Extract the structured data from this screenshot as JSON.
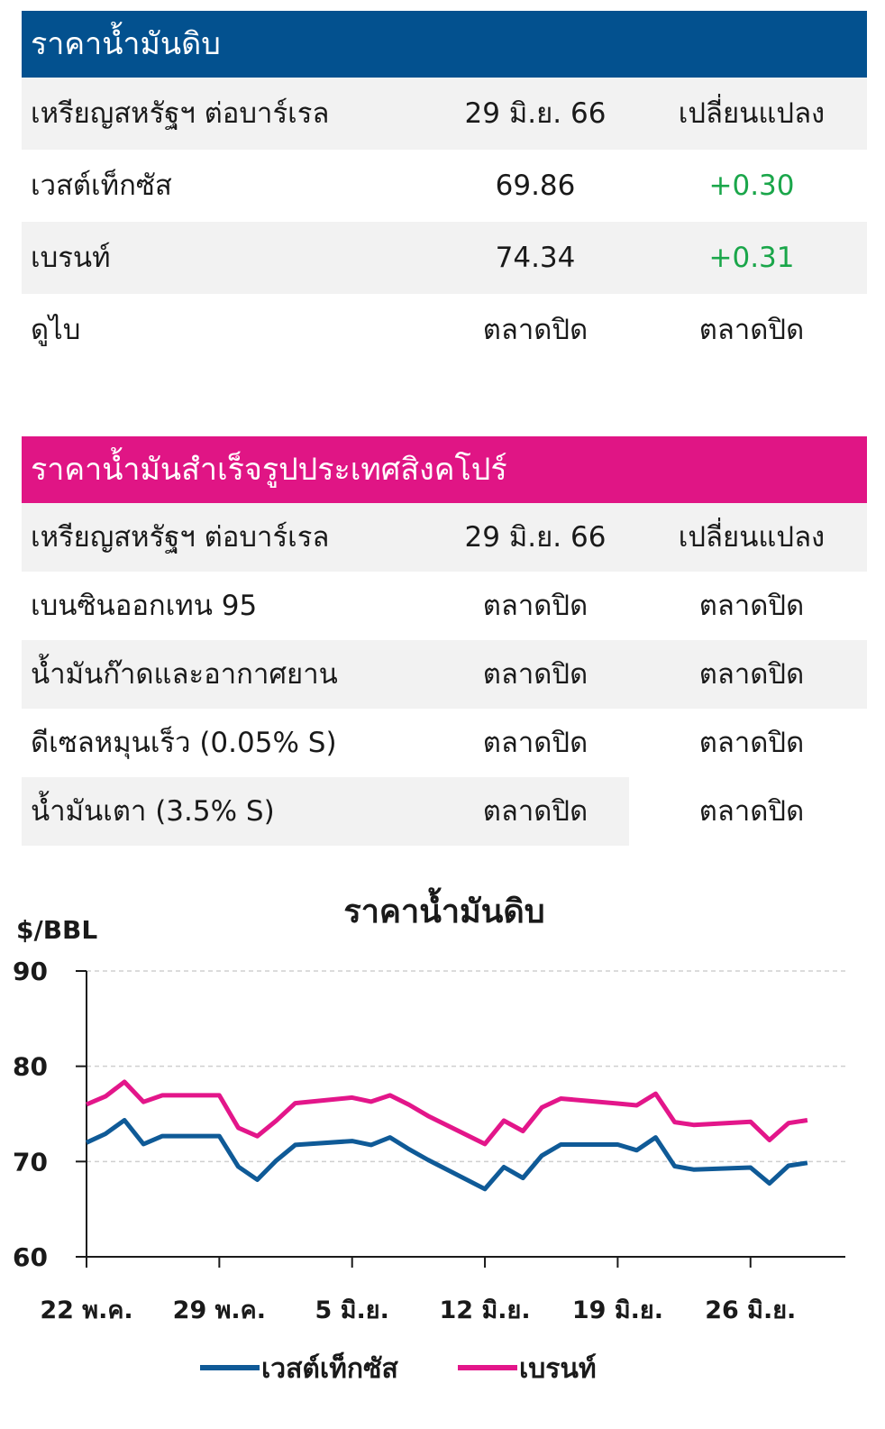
{
  "crude": {
    "title": "ราคาน้ำมันดิบ",
    "header": {
      "unit": "เหรียญสหรัฐฯ ต่อบาร์เรล",
      "date": "29 มิ.ย. 66",
      "change": "เปลี่ยนแปลง"
    },
    "rows": [
      {
        "name": "เวสต์เท็กซัส",
        "value": "69.86",
        "change": "+0.30"
      },
      {
        "name": "เบรนท์",
        "value": "74.34",
        "change": "+0.31"
      },
      {
        "name": "ดูไบ",
        "value": "ตลาดปิด",
        "change": "ตลาดปิด"
      }
    ]
  },
  "refined": {
    "title": "ราคาน้ำมันสำเร็จรูปประเทศสิงคโปร์",
    "header": {
      "unit": "เหรียญสหรัฐฯ ต่อบาร์เรล",
      "date": "29 มิ.ย. 66",
      "change": "เปลี่ยนแปลง"
    },
    "rows": [
      {
        "name": "เบนซินออกเทน 95",
        "value": "ตลาดปิด",
        "change": "ตลาดปิด"
      },
      {
        "name": "น้ำมันก๊าดและอากาศยาน",
        "value": "ตลาดปิด",
        "change": "ตลาดปิด"
      },
      {
        "name": "ดีเซลหมุนเร็ว (0.05% S)",
        "value": "ตลาดปิด",
        "change": "ตลาดปิด"
      },
      {
        "name": "น้ำมันเตา (3.5% S)",
        "value": "ตลาดปิด",
        "change": "ตลาดปิด"
      }
    ]
  },
  "colors": {
    "wti": "#0f5a97",
    "brent": "#e3168a",
    "up": "#1aa64a",
    "header_blue": "#03518f",
    "header_pink": "#e01585"
  },
  "chart_data": {
    "type": "line",
    "title": "ราคาน้ำมันดิบ",
    "ylabel": "$/BBL",
    "ylim": [
      60,
      90
    ],
    "yticks": [
      "90",
      "80",
      "70",
      "60"
    ],
    "grid": true,
    "legend_position": "bottom",
    "x_tick_labels": [
      "22 พ.ค.",
      "29 พ.ค.",
      "5 มิ.ย.",
      "12 มิ.ย.",
      "19 มิ.ย.",
      "26 มิ.ย."
    ],
    "x": [
      "2023-05-22",
      "2023-05-23",
      "2023-05-24",
      "2023-05-25",
      "2023-05-26",
      "2023-05-29",
      "2023-05-30",
      "2023-05-31",
      "2023-06-01",
      "2023-06-02",
      "2023-06-05",
      "2023-06-06",
      "2023-06-07",
      "2023-06-08",
      "2023-06-09",
      "2023-06-12",
      "2023-06-13",
      "2023-06-14",
      "2023-06-15",
      "2023-06-16",
      "2023-06-19",
      "2023-06-20",
      "2023-06-21",
      "2023-06-22",
      "2023-06-23",
      "2023-06-26",
      "2023-06-27",
      "2023-06-28",
      "2023-06-29"
    ],
    "series": [
      {
        "name": "เวสต์เท็กซัส",
        "values": [
          71.99,
          72.91,
          74.34,
          71.83,
          72.67,
          72.67,
          69.46,
          68.09,
          70.1,
          71.74,
          72.15,
          71.74,
          72.53,
          71.29,
          70.17,
          67.12,
          69.42,
          68.27,
          70.62,
          71.78,
          71.78,
          71.19,
          72.53,
          69.51,
          69.16,
          69.37,
          67.7,
          69.56,
          69.86
        ]
      },
      {
        "name": "เบรนท์",
        "values": [
          75.99,
          76.84,
          78.36,
          76.26,
          76.95,
          76.95,
          73.54,
          72.66,
          74.28,
          76.13,
          76.71,
          76.29,
          76.95,
          75.96,
          74.79,
          71.84,
          74.29,
          73.2,
          75.67,
          76.61,
          76.09,
          75.9,
          77.12,
          74.14,
          73.85,
          74.18,
          72.26,
          74.03,
          74.34
        ]
      }
    ]
  },
  "legend": [
    {
      "label": "เวสต์เท็กซัส"
    },
    {
      "label": "เบรนท์"
    }
  ]
}
